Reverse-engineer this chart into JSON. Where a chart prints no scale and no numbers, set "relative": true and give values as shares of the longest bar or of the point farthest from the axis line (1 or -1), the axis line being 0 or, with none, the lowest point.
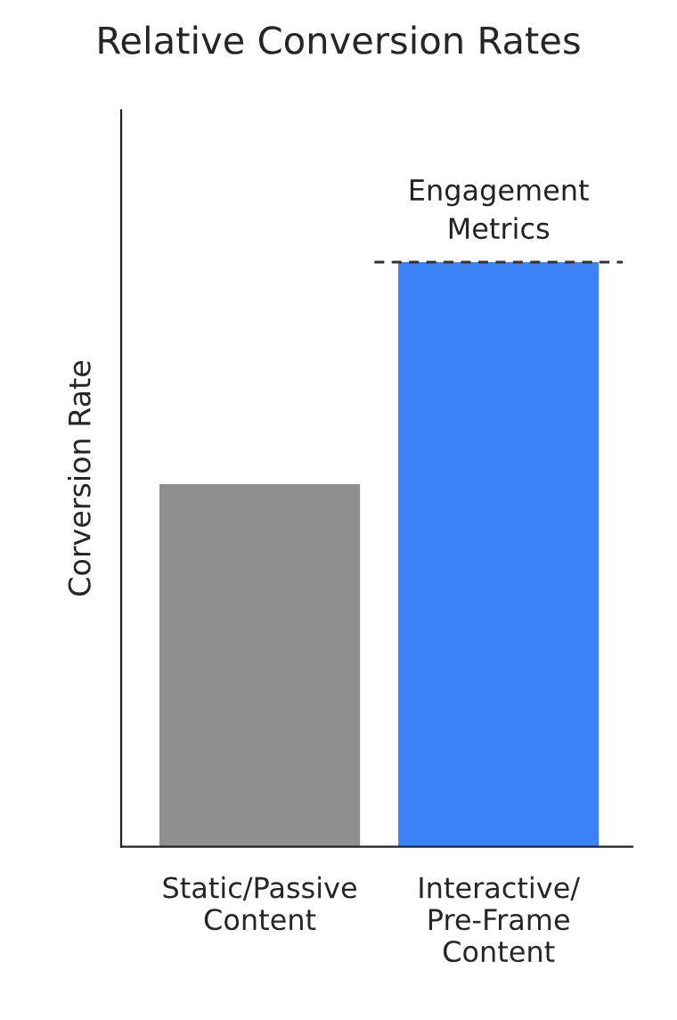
{
  "chart_data": {
    "type": "bar",
    "title": "Relative Conversion Rates",
    "ylabel": "Corversion Rate",
    "relative": true,
    "categories": [
      "Static/Passive\nContent",
      "Interactive/\nPre-Frame\nContent"
    ],
    "values": [
      0.62,
      1
    ],
    "colors": [
      "#8f8f8f",
      "#3b82f6"
    ],
    "ref_lines": [
      {
        "axis": "y",
        "value": 1,
        "label": "Engagement\nMetrics",
        "color": "#333333",
        "line_style": "dashed"
      }
    ],
    "grid": false,
    "legend": false
  }
}
